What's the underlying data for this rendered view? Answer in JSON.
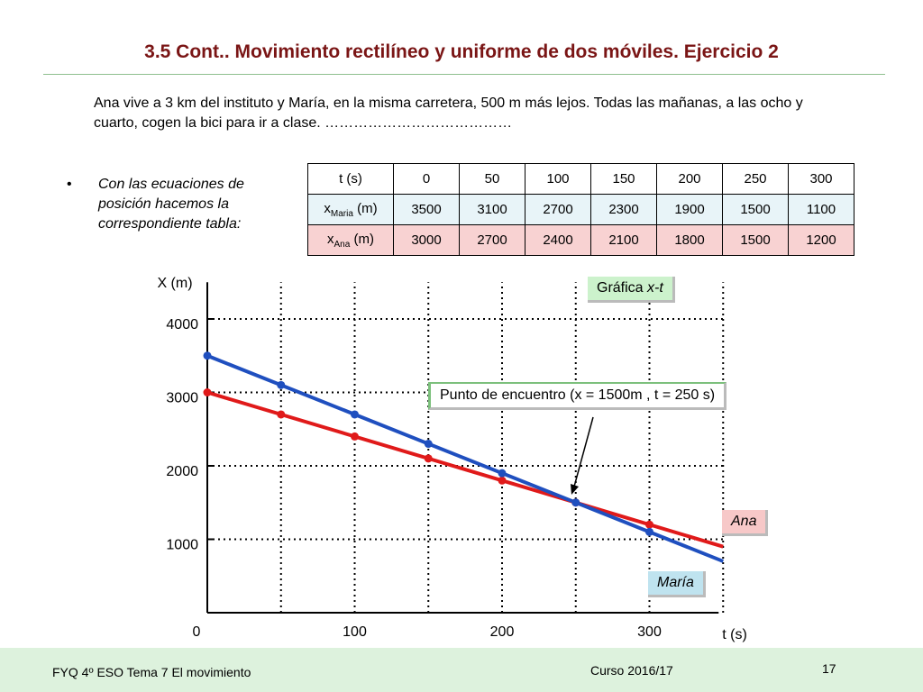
{
  "title": "3.5  Cont.. Movimiento rectilíneo y uniforme de dos móviles. Ejercicio 2",
  "intro": "Ana vive a 3 km del instituto y María, en la misma carretera, 500 m más lejos. Todas las mañanas, a las ocho y cuarto, cogen la bici para ir a clase. …………………………………",
  "bullet_text": "Con las ecuaciones  de posición hacemos la correspondiente tabla:",
  "table": {
    "t_label": "t (s)",
    "maria_label_main": "x",
    "maria_label_sub": "Maria",
    "maria_label_unit": " (m)",
    "ana_label_main": "x",
    "ana_label_sub": "Ana",
    "ana_label_unit": " (m)",
    "t_values": [
      "0",
      "50",
      "100",
      "150",
      "200",
      "250",
      "300"
    ],
    "maria_values": [
      "3500",
      "3100",
      "2700",
      "2300",
      "1900",
      "1500",
      "1100"
    ],
    "ana_values": [
      "3000",
      "2700",
      "2400",
      "2100",
      "1800",
      "1500",
      "1200"
    ]
  },
  "labels": {
    "grafica": "Gráfica x-t",
    "encuentro": "Punto de encuentro  (x = 1500m , t = 250 s)",
    "ana": "Ana",
    "maria": "María"
  },
  "footer": {
    "left": "FYQ 4º ESO  Tema  7 El movimiento",
    "mid": "Curso 2016/17",
    "page": "17"
  },
  "chart_data": {
    "type": "line",
    "xlabel": "t (s)",
    "ylabel": "X (m)",
    "xlim": [
      0,
      350
    ],
    "ylim": [
      0,
      4500
    ],
    "x_ticks": [
      0,
      100,
      200,
      300
    ],
    "y_ticks": [
      1000,
      2000,
      3000,
      4000
    ],
    "x_tick_labels": [
      "0",
      "100",
      "200",
      "300"
    ],
    "y_tick_labels": [
      "1000",
      "2000",
      "3000",
      "4000"
    ],
    "grid": true,
    "series": [
      {
        "name": "María",
        "color": "#1f4fbf",
        "x": [
          0,
          50,
          100,
          150,
          200,
          250,
          300
        ],
        "y": [
          3500,
          3100,
          2700,
          2300,
          1900,
          1500,
          1100
        ]
      },
      {
        "name": "Ana",
        "color": "#e01a1a",
        "x": [
          0,
          50,
          100,
          150,
          200,
          250,
          300
        ],
        "y": [
          3000,
          2700,
          2400,
          2100,
          1800,
          1500,
          1200
        ]
      }
    ],
    "meeting_point": {
      "t": 250,
      "x": 1500
    }
  }
}
